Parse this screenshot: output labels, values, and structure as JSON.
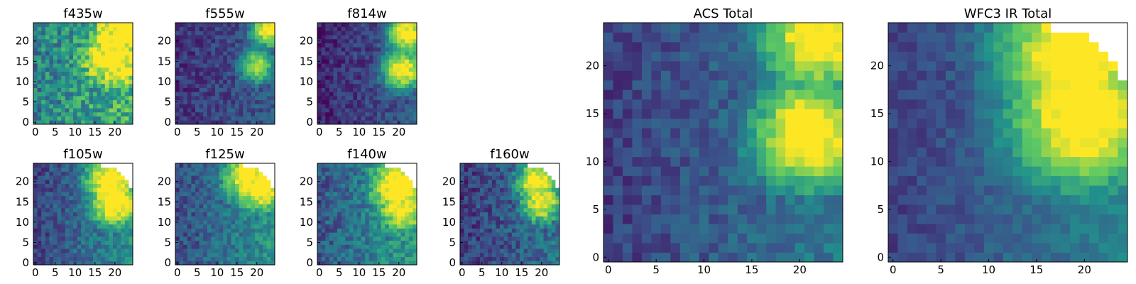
{
  "figure": {
    "colormap": "viridis",
    "colors": [
      "#440154",
      "#3b528b",
      "#21918c",
      "#5ec962",
      "#fde725"
    ],
    "missing_color": "#ffffff"
  },
  "chart_data": [
    {
      "type": "heatmap",
      "title": "f435w",
      "xlabel": "",
      "ylabel": "",
      "xlim": [
        0,
        24
      ],
      "ylim": [
        0,
        24
      ],
      "xticks": [
        "0",
        "5",
        "10",
        "15",
        "20"
      ],
      "yticks": [
        "0",
        "5",
        "10",
        "15",
        "20"
      ],
      "grid": false,
      "z": {
        "grid_size": 25,
        "scale": "normalized 0-1",
        "peak": [
          [
            23,
            24,
            0.98
          ],
          [
            20,
            16,
            0.9
          ]
        ],
        "spread": 6.5,
        "gradient": 0.25,
        "noise": 0.42,
        "base": 0.55
      }
    },
    {
      "type": "heatmap",
      "title": "f555w",
      "xlabel": "",
      "ylabel": "",
      "xlim": [
        0,
        24
      ],
      "ylim": [
        0,
        24
      ],
      "xticks": [
        "0",
        "5",
        "10",
        "15",
        "20"
      ],
      "yticks": [
        "0",
        "5",
        "10",
        "15",
        "20"
      ],
      "grid": false,
      "z": {
        "grid_size": 25,
        "scale": "normalized 0-1",
        "peak": [
          [
            23,
            23,
            0.95
          ],
          [
            20,
            14,
            0.75
          ]
        ],
        "spread": 3.5,
        "gradient": 0.15,
        "noise": 0.22,
        "base": 0.22
      }
    },
    {
      "type": "heatmap",
      "title": "f814w",
      "xlabel": "",
      "ylabel": "",
      "xlim": [
        0,
        24
      ],
      "ylim": [
        0,
        24
      ],
      "xticks": [
        "0",
        "5",
        "10",
        "15",
        "20"
      ],
      "yticks": [
        "0",
        "5",
        "10",
        "15",
        "20"
      ],
      "grid": false,
      "z": {
        "grid_size": 25,
        "scale": "normalized 0-1",
        "peak": [
          [
            22,
            22,
            0.95
          ],
          [
            21,
            13,
            0.95
          ]
        ],
        "spread": 4.0,
        "gradient": 0.2,
        "noise": 0.22,
        "base": 0.2
      }
    },
    {
      "type": "heatmap",
      "title": "f105w",
      "xlabel": "",
      "ylabel": "",
      "xlim": [
        0,
        24
      ],
      "ylim": [
        0,
        24
      ],
      "xticks": [
        "0",
        "5",
        "10",
        "15",
        "20"
      ],
      "yticks": [
        "0",
        "5",
        "10",
        "15",
        "20"
      ],
      "grid": false,
      "z": {
        "grid_size": 25,
        "scale": "normalized 0-1",
        "peak": [
          [
            19,
            20,
            0.95
          ],
          [
            20,
            15,
            0.95
          ]
        ],
        "spread": 5.0,
        "gradient": 0.3,
        "noise": 0.25,
        "base": 0.35,
        "missing_corner": "top-right"
      }
    },
    {
      "type": "heatmap",
      "title": "f125w",
      "xlabel": "",
      "ylabel": "",
      "xlim": [
        0,
        24
      ],
      "ylim": [
        0,
        24
      ],
      "xticks": [
        "0",
        "5",
        "10",
        "15",
        "20"
      ],
      "yticks": [
        "0",
        "5",
        "10",
        "15",
        "20"
      ],
      "grid": false,
      "z": {
        "grid_size": 25,
        "scale": "normalized 0-1",
        "peak": [
          [
            21,
            19,
            0.95
          ],
          [
            18,
            21,
            0.9
          ]
        ],
        "spread": 5.0,
        "gradient": 0.3,
        "noise": 0.25,
        "base": 0.38,
        "missing_corner": "top-right"
      }
    },
    {
      "type": "heatmap",
      "title": "f140w",
      "xlabel": "",
      "ylabel": "",
      "xlim": [
        0,
        24
      ],
      "ylim": [
        0,
        24
      ],
      "xticks": [
        "0",
        "5",
        "10",
        "15",
        "20"
      ],
      "yticks": [
        "0",
        "5",
        "10",
        "15",
        "20"
      ],
      "grid": false,
      "z": {
        "grid_size": 25,
        "scale": "normalized 0-1",
        "peak": [
          [
            20,
            19,
            0.95
          ],
          [
            21,
            14,
            0.8
          ]
        ],
        "spread": 5.5,
        "gradient": 0.3,
        "noise": 0.28,
        "base": 0.42,
        "missing_corner": "top-right"
      }
    },
    {
      "type": "heatmap",
      "title": "f160w",
      "xlabel": "",
      "ylabel": "",
      "xlim": [
        0,
        24
      ],
      "ylim": [
        0,
        24
      ],
      "xticks": [
        "0",
        "5",
        "10",
        "15",
        "20"
      ],
      "yticks": [
        "0",
        "5",
        "10",
        "15",
        "20"
      ],
      "grid": false,
      "z": {
        "grid_size": 25,
        "scale": "normalized 0-1",
        "peak": [
          [
            19,
            20,
            0.95
          ],
          [
            20,
            15,
            0.9
          ]
        ],
        "spread": 4.0,
        "gradient": 0.2,
        "noise": 0.28,
        "base": 0.28,
        "missing_corner": "top-right"
      }
    },
    {
      "type": "heatmap",
      "title": "ACS Total",
      "xlabel": "",
      "ylabel": "",
      "xlim": [
        0,
        24
      ],
      "ylim": [
        0,
        24
      ],
      "xticks": [
        "0",
        "5",
        "10",
        "15",
        "20"
      ],
      "yticks": [
        "0",
        "5",
        "10",
        "15",
        "20"
      ],
      "grid": false,
      "z": {
        "grid_size": 25,
        "scale": "normalized 0-1",
        "peak": [
          [
            22,
            23,
            0.95
          ],
          [
            21,
            13,
            0.98
          ]
        ],
        "spread": 4.5,
        "gradient": 0.22,
        "noise": 0.2,
        "base": 0.3
      }
    },
    {
      "type": "heatmap",
      "title": "WFC3 IR Total",
      "xlabel": "",
      "ylabel": "",
      "xlim": [
        0,
        24
      ],
      "ylim": [
        0,
        24
      ],
      "xticks": [
        "0",
        "5",
        "10",
        "15",
        "20"
      ],
      "yticks": [
        "0",
        "5",
        "10",
        "15",
        "20"
      ],
      "grid": false,
      "z": {
        "grid_size": 25,
        "scale": "normalized 0-1",
        "peak": [
          [
            19,
            21,
            0.98
          ],
          [
            20,
            15,
            0.98
          ]
        ],
        "spread": 6.0,
        "gradient": 0.25,
        "noise": 0.15,
        "base": 0.32,
        "missing_corner": "top-right"
      }
    }
  ]
}
